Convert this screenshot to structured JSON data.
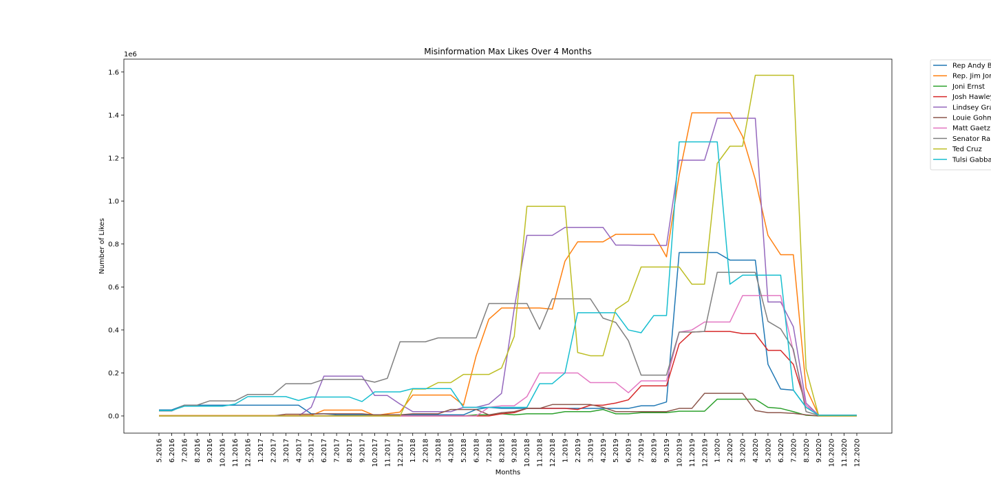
{
  "chart_data": {
    "type": "line",
    "title": "Misinformation Max Likes Over 4 Months",
    "xlabel": "Months",
    "ylabel": "Number of Likes",
    "y_offset_label": "1e6",
    "ylim": [
      -0.08,
      1.66
    ],
    "yticks": [
      0.0,
      0.2,
      0.4,
      0.6,
      0.8,
      1.0,
      1.2,
      1.4,
      1.6
    ],
    "ytick_labels": [
      "0.0",
      "0.2",
      "0.4",
      "0.6",
      "0.8",
      "1.0",
      "1.2",
      "1.4",
      "1.6"
    ],
    "grid": false,
    "legend_position": "outside-right",
    "categories": [
      "5.2016",
      "6.2016",
      "7.2016",
      "8.2016",
      "9.2016",
      "10.2016",
      "11.2016",
      "12.2016",
      "1.2017",
      "2.2017",
      "3.2017",
      "4.2017",
      "5.2017",
      "6.2017",
      "7.2017",
      "8.2017",
      "9.2017",
      "10.2017",
      "11.2017",
      "12.2017",
      "1.2018",
      "2.2018",
      "3.2018",
      "4.2018",
      "5.2018",
      "6.2018",
      "7.2018",
      "8.2018",
      "9.2018",
      "10.2018",
      "11.2018",
      "12.2018",
      "1.2019",
      "2.2019",
      "3.2019",
      "4.2019",
      "5.2019",
      "6.2019",
      "7.2019",
      "8.2019",
      "9.2019",
      "10.2019",
      "11.2019",
      "12.2019",
      "1.2020",
      "2.2020",
      "3.2020",
      "4.2020",
      "5.2020",
      "6.2020",
      "7.2020",
      "8.2020",
      "9.2020",
      "10.2020",
      "11.2020",
      "12.2020"
    ],
    "series": [
      {
        "name": "Rep Andy B",
        "color": "#1f77b4",
        "values": [
          0.028,
          0.028,
          0.05,
          0.05,
          0.05,
          0.05,
          0.05,
          0.05,
          0.05,
          0.05,
          0.05,
          0.05,
          0.01,
          0.01,
          0.005,
          0.005,
          0.005,
          0.005,
          0.005,
          0.005,
          0.005,
          0.005,
          0.005,
          0.005,
          0.005,
          0.03,
          0.04,
          0.035,
          0.035,
          0.035,
          0.035,
          0.035,
          0.035,
          0.035,
          0.035,
          0.035,
          0.035,
          0.035,
          0.047,
          0.047,
          0.065,
          0.76,
          0.76,
          0.76,
          0.76,
          0.725,
          0.725,
          0.725,
          0.24,
          0.125,
          0.12,
          0.04,
          0.003,
          0.003,
          0.003,
          0.003
        ]
      },
      {
        "name": "Rep. Jim Jor",
        "color": "#ff7f0e",
        "values": [
          0.002,
          0.002,
          0.002,
          0.002,
          0.002,
          0.002,
          0.002,
          0.002,
          0.002,
          0.002,
          0.002,
          0.002,
          0.002,
          0.027,
          0.027,
          0.027,
          0.027,
          0.002,
          0.01,
          0.018,
          0.097,
          0.097,
          0.097,
          0.097,
          0.05,
          0.28,
          0.45,
          0.502,
          0.502,
          0.502,
          0.502,
          0.497,
          0.72,
          0.81,
          0.81,
          0.81,
          0.845,
          0.845,
          0.845,
          0.845,
          0.74,
          1.12,
          1.41,
          1.41,
          1.41,
          1.41,
          1.3,
          1.1,
          0.84,
          0.75,
          0.75,
          0.13,
          0.003,
          0.003,
          0.003,
          0.003
        ]
      },
      {
        "name": "Joni Ernst",
        "color": "#2ca02c",
        "values": [
          0.0,
          0.0,
          0.0,
          0.0,
          0.0,
          0.0,
          0.0,
          0.0,
          0.0,
          0.0,
          0.0,
          0.0,
          0.0,
          0.0,
          0.0,
          0.0,
          0.0,
          0.0,
          0.0,
          0.0,
          0.0,
          0.0,
          0.0,
          0.0,
          0.0,
          0.005,
          0.005,
          0.01,
          0.005,
          0.01,
          0.01,
          0.01,
          0.02,
          0.02,
          0.02,
          0.03,
          0.01,
          0.01,
          0.015,
          0.015,
          0.015,
          0.022,
          0.022,
          0.022,
          0.078,
          0.078,
          0.078,
          0.078,
          0.04,
          0.035,
          0.02,
          0.003,
          0.0,
          0.0,
          0.0,
          0.0
        ]
      },
      {
        "name": "Josh Hawley",
        "color": "#d62728",
        "values": [
          0.0,
          0.0,
          0.0,
          0.0,
          0.0,
          0.0,
          0.0,
          0.0,
          0.0,
          0.0,
          0.0,
          0.0,
          0.0,
          0.0,
          0.0,
          0.0,
          0.0,
          0.0,
          0.0,
          0.0,
          0.0,
          0.0,
          0.0,
          0.0,
          0.0,
          0.0,
          0.0,
          0.01,
          0.015,
          0.035,
          0.035,
          0.035,
          0.035,
          0.03,
          0.05,
          0.05,
          0.06,
          0.075,
          0.14,
          0.14,
          0.14,
          0.335,
          0.39,
          0.393,
          0.393,
          0.393,
          0.383,
          0.383,
          0.305,
          0.305,
          0.24,
          0.05,
          0.0,
          0.0,
          0.0,
          0.0
        ]
      },
      {
        "name": "Lindsey Gra",
        "color": "#9467bd",
        "values": [
          0.0,
          0.0,
          0.0,
          0.0,
          0.0,
          0.0,
          0.0,
          0.0,
          0.0,
          0.0,
          0.0,
          0.0,
          0.04,
          0.185,
          0.185,
          0.185,
          0.185,
          0.095,
          0.095,
          0.055,
          0.02,
          0.02,
          0.02,
          0.02,
          0.04,
          0.04,
          0.055,
          0.105,
          0.5,
          0.84,
          0.84,
          0.84,
          0.877,
          0.877,
          0.877,
          0.877,
          0.795,
          0.795,
          0.793,
          0.793,
          0.793,
          1.19,
          1.19,
          1.19,
          1.385,
          1.385,
          1.385,
          1.385,
          0.53,
          0.53,
          0.415,
          0.06,
          0.003,
          0.003,
          0.003,
          0.003
        ]
      },
      {
        "name": "Louie Gohm",
        "color": "#8c564b",
        "values": [
          0.0,
          0.0,
          0.0,
          0.0,
          0.0,
          0.0,
          0.0,
          0.0,
          0.0,
          0.0,
          0.008,
          0.008,
          0.008,
          0.01,
          0.01,
          0.01,
          0.01,
          0.005,
          0.005,
          0.005,
          0.01,
          0.01,
          0.01,
          0.03,
          0.03,
          0.03,
          0.005,
          0.015,
          0.02,
          0.035,
          0.035,
          0.053,
          0.053,
          0.053,
          0.053,
          0.04,
          0.02,
          0.02,
          0.02,
          0.02,
          0.02,
          0.035,
          0.035,
          0.105,
          0.105,
          0.105,
          0.105,
          0.025,
          0.015,
          0.015,
          0.012,
          0.005,
          0.0,
          0.0,
          0.0,
          0.0
        ]
      },
      {
        "name": "Matt Gaetz",
        "color": "#e377c2",
        "values": [
          0.0,
          0.0,
          0.0,
          0.0,
          0.0,
          0.0,
          0.0,
          0.0,
          0.0,
          0.0,
          0.0,
          0.0,
          0.0,
          0.0,
          0.0,
          0.0,
          0.0,
          0.0,
          0.0,
          0.0,
          0.0,
          0.0,
          0.0,
          0.0,
          0.0,
          0.0,
          0.04,
          0.047,
          0.047,
          0.09,
          0.2,
          0.2,
          0.2,
          0.2,
          0.155,
          0.155,
          0.155,
          0.108,
          0.163,
          0.163,
          0.163,
          0.39,
          0.4,
          0.437,
          0.437,
          0.437,
          0.56,
          0.56,
          0.56,
          0.56,
          0.3,
          0.05,
          0.0,
          0.0,
          0.0,
          0.0
        ]
      },
      {
        "name": "Senator Ra",
        "color": "#7f7f7f",
        "values": [
          0.023,
          0.023,
          0.05,
          0.05,
          0.07,
          0.07,
          0.07,
          0.1,
          0.1,
          0.1,
          0.15,
          0.15,
          0.15,
          0.17,
          0.17,
          0.17,
          0.17,
          0.157,
          0.175,
          0.345,
          0.345,
          0.345,
          0.363,
          0.363,
          0.363,
          0.363,
          0.523,
          0.523,
          0.523,
          0.523,
          0.403,
          0.545,
          0.545,
          0.545,
          0.545,
          0.455,
          0.435,
          0.35,
          0.19,
          0.19,
          0.19,
          0.39,
          0.39,
          0.393,
          0.668,
          0.668,
          0.668,
          0.668,
          0.44,
          0.405,
          0.31,
          0.02,
          0.003,
          0.003,
          0.003,
          0.003
        ]
      },
      {
        "name": "Ted Cruz",
        "color": "#bcbd22",
        "values": [
          0.0,
          0.0,
          0.0,
          0.0,
          0.0,
          0.0,
          0.0,
          0.0,
          0.0,
          0.0,
          0.0,
          0.0,
          0.0,
          0.0,
          0.0,
          0.0,
          0.0,
          0.0,
          0.0,
          0.0,
          0.125,
          0.125,
          0.155,
          0.155,
          0.193,
          0.193,
          0.193,
          0.223,
          0.37,
          0.975,
          0.975,
          0.975,
          0.975,
          0.295,
          0.28,
          0.28,
          0.495,
          0.535,
          0.693,
          0.693,
          0.693,
          0.693,
          0.613,
          0.613,
          1.175,
          1.255,
          1.255,
          1.585,
          1.585,
          1.585,
          1.585,
          0.22,
          0.0,
          0.0,
          0.0,
          0.0
        ]
      },
      {
        "name": "Tulsi Gabba",
        "color": "#17becf",
        "values": [
          0.025,
          0.025,
          0.045,
          0.045,
          0.045,
          0.045,
          0.055,
          0.09,
          0.09,
          0.09,
          0.09,
          0.072,
          0.088,
          0.088,
          0.088,
          0.088,
          0.067,
          0.112,
          0.112,
          0.112,
          0.127,
          0.127,
          0.127,
          0.127,
          0.04,
          0.04,
          0.04,
          0.04,
          0.04,
          0.04,
          0.15,
          0.15,
          0.2,
          0.48,
          0.48,
          0.48,
          0.48,
          0.4,
          0.387,
          0.467,
          0.467,
          1.275,
          1.275,
          1.275,
          1.275,
          0.613,
          0.655,
          0.655,
          0.655,
          0.655,
          0.12,
          0.04,
          0.003,
          0.003,
          0.003,
          0.003
        ]
      }
    ]
  }
}
